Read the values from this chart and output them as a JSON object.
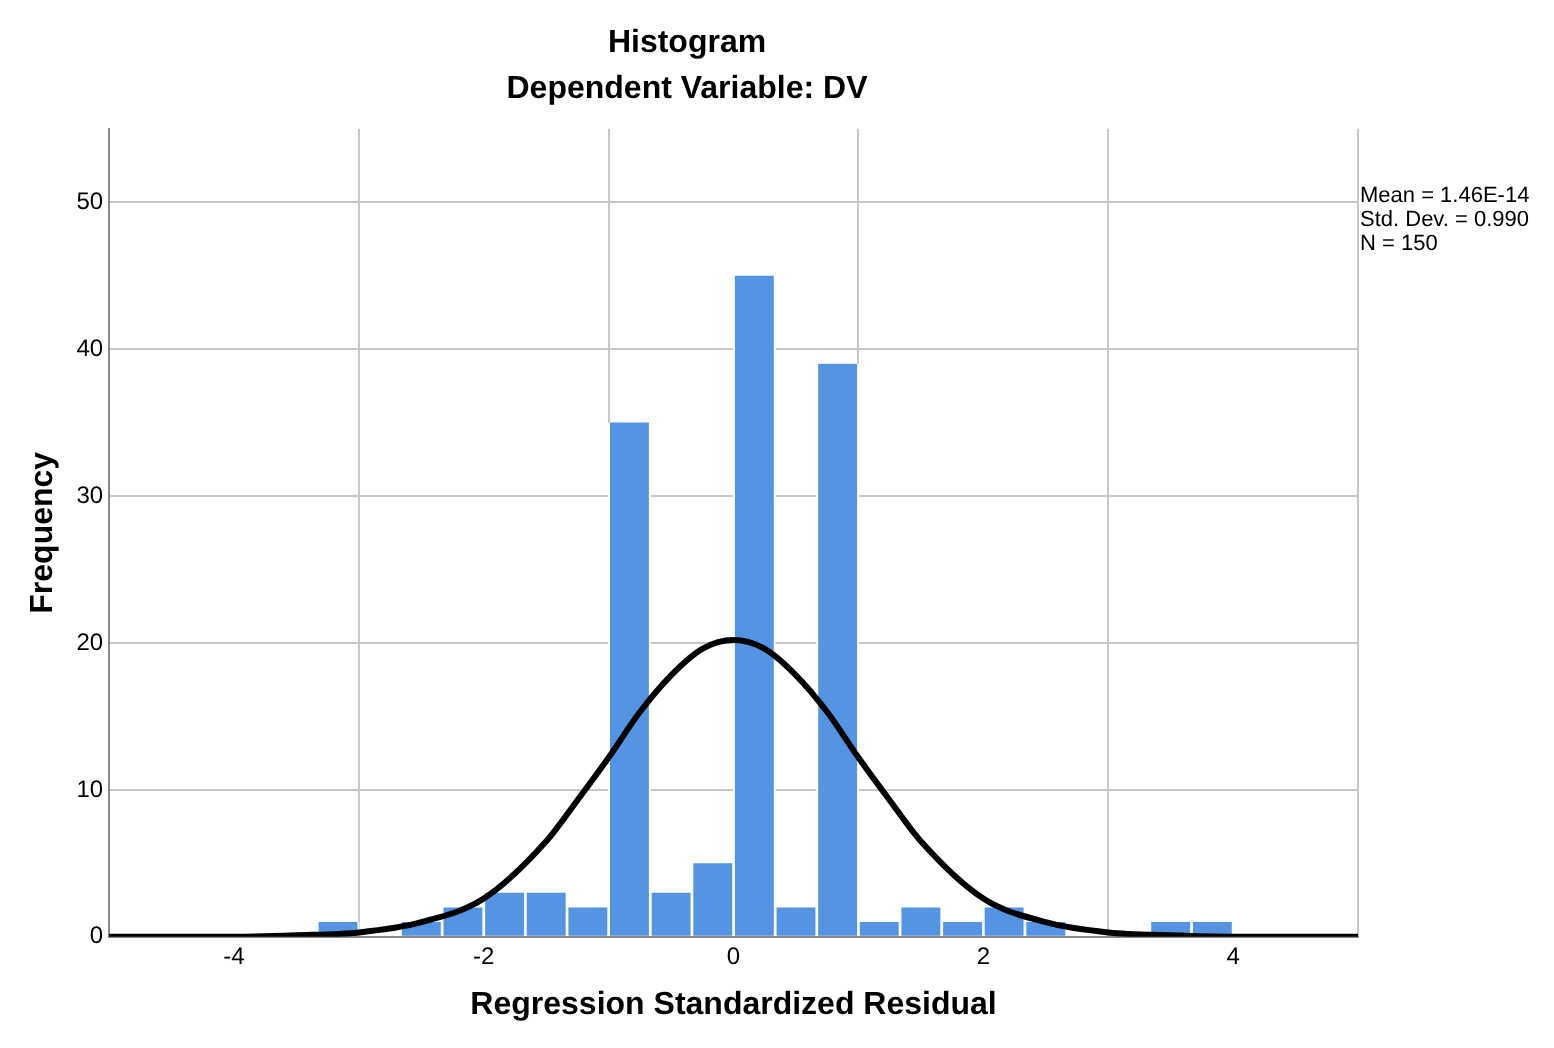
{
  "chart_data": {
    "type": "histogram",
    "title": "Histogram",
    "subtitle": "Dependent Variable: DV",
    "xlabel": "Regression Standardized Residual",
    "ylabel": "Frequency",
    "bins": [
      -3.333,
      -3.0,
      -2.667,
      -2.333,
      -2.0,
      -1.667,
      -1.333,
      -1.0,
      -0.667,
      -0.333,
      0.0,
      0.333,
      0.667,
      1.0,
      1.333,
      1.667,
      2.0,
      2.333,
      2.667,
      3.0,
      3.333,
      3.667,
      4.0
    ],
    "values": [
      1,
      0,
      1,
      2,
      3,
      3,
      2,
      35,
      3,
      5,
      45,
      2,
      39,
      1,
      2,
      1,
      2,
      1,
      0,
      0,
      1,
      1
    ],
    "color": "#5494e3",
    "series": [
      {
        "type": "line",
        "color": "#000000",
        "x": [
          -5,
          -4,
          -3.5,
          -3,
          -2.5,
          -2,
          -1.5,
          -1.25,
          -1,
          -0.75,
          -0.5,
          -0.25,
          0,
          0.25,
          0.5,
          0.75,
          1,
          1.25,
          1.5,
          2,
          2.5,
          3,
          3.5,
          4,
          5
        ],
        "values": [
          0,
          0,
          0.1,
          0.3,
          1.0,
          2.6,
          6.5,
          9.3,
          12.2,
          15.3,
          17.8,
          19.6,
          20.2,
          19.6,
          17.8,
          15.3,
          12.2,
          9.3,
          6.5,
          2.6,
          1.0,
          0.3,
          0.1,
          0,
          0
        ]
      }
    ],
    "xlim": [
      -5,
      5
    ],
    "xticks": [
      -4,
      -2,
      0,
      2,
      4
    ],
    "ylim": [
      0,
      55
    ],
    "yticks": [
      0,
      10,
      20,
      30,
      40,
      50
    ],
    "grid": true,
    "legend": false,
    "marker": "none",
    "line_style": "solid",
    "annotations": [
      "Mean = 1.46E-14\nStd. Dev. = 0.990\nN = 150"
    ]
  }
}
